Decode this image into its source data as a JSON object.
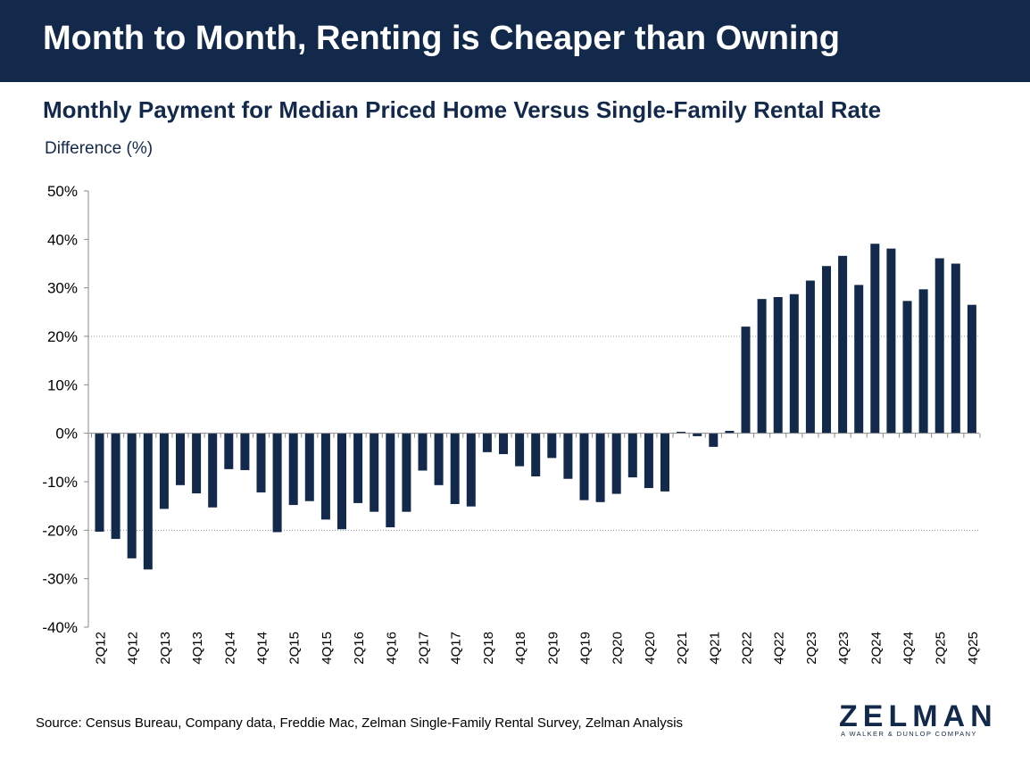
{
  "banner": {
    "title": "Month to Month, Renting is Cheaper than Owning"
  },
  "colors": {
    "banner_bg": "#13294b",
    "bar": "#13294b",
    "text_dark": "#13294b"
  },
  "chart_data": {
    "type": "bar",
    "title": "Monthly Payment for Median Priced Home Versus Single-Family Rental Rate",
    "ylabel": "Difference (%)",
    "xlabel": "",
    "ylim": [
      -40,
      50
    ],
    "y_ticks": [
      50,
      40,
      30,
      20,
      10,
      0,
      -10,
      -20,
      -30,
      -40
    ],
    "y_tick_labels": [
      "50%",
      "40%",
      "30%",
      "20%",
      "10%",
      "0%",
      "-10%",
      "-20%",
      "-30%",
      "-40%"
    ],
    "gridlines": [
      20,
      -20
    ],
    "categories": [
      "2Q12",
      "3Q12",
      "4Q12",
      "1Q13",
      "2Q13",
      "3Q13",
      "4Q13",
      "1Q14",
      "2Q14",
      "3Q14",
      "4Q14",
      "1Q15",
      "2Q15",
      "3Q15",
      "4Q15",
      "1Q16",
      "2Q16",
      "3Q16",
      "4Q16",
      "1Q17",
      "2Q17",
      "3Q17",
      "4Q17",
      "1Q18",
      "2Q18",
      "3Q18",
      "4Q18",
      "1Q19",
      "2Q19",
      "3Q19",
      "4Q19",
      "1Q20",
      "2Q20",
      "3Q20",
      "4Q20",
      "1Q21",
      "2Q21",
      "3Q21",
      "4Q21",
      "1Q22",
      "2Q22",
      "3Q22",
      "4Q22",
      "1Q23",
      "2Q23",
      "3Q23",
      "4Q23",
      "1Q24",
      "2Q24",
      "3Q24",
      "4Q24",
      "1Q25",
      "2Q25",
      "3Q25",
      "4Q25"
    ],
    "visible_tick_labels": [
      "2Q12",
      "4Q12",
      "2Q13",
      "4Q13",
      "2Q14",
      "4Q14",
      "2Q15",
      "4Q15",
      "2Q16",
      "4Q16",
      "2Q17",
      "4Q17",
      "2Q18",
      "4Q18",
      "2Q19",
      "4Q19",
      "2Q20",
      "4Q20",
      "2Q21",
      "4Q21",
      "2Q22",
      "4Q22",
      "2Q23",
      "4Q23",
      "2Q24",
      "4Q24",
      "2Q25",
      "4Q25"
    ],
    "values": [
      -20.3,
      -21.8,
      -25.8,
      -28.1,
      -15.6,
      -10.7,
      -12.4,
      -15.3,
      -7.4,
      -7.6,
      -12.2,
      -20.4,
      -14.8,
      -14.0,
      -17.8,
      -19.8,
      -14.4,
      -16.2,
      -19.4,
      -16.2,
      -7.7,
      -10.7,
      -14.6,
      -15.1,
      -3.9,
      -4.3,
      -6.8,
      -8.9,
      -5.1,
      -9.4,
      -13.8,
      -14.2,
      -12.5,
      -9.1,
      -11.3,
      -12.0,
      0.3,
      -0.6,
      -2.8,
      0.5,
      22.0,
      27.7,
      28.1,
      28.7,
      31.5,
      34.5,
      36.6,
      30.6,
      39.1,
      38.1,
      27.3,
      29.7,
      36.1,
      35.0,
      26.5
    ]
  },
  "footer": {
    "source": "Source: Census Bureau, Company data, Freddie Mac, Zelman Single-Family Rental Survey, Zelman Analysis",
    "logo_word": "ZELMAN",
    "logo_tagline": "A WALKER & DUNLOP COMPANY"
  }
}
